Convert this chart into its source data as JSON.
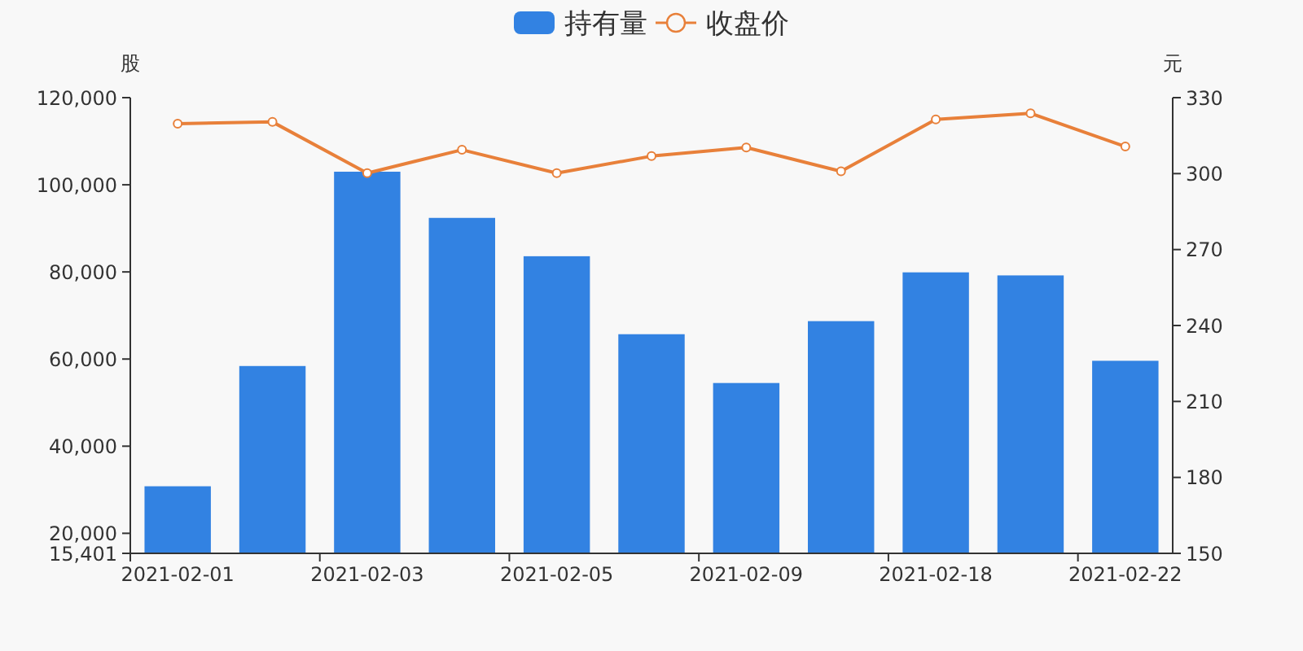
{
  "chart_data": {
    "type": "bar",
    "legend": "top",
    "categories": [
      "2021-02-01",
      null,
      "2021-02-03",
      null,
      "2021-02-05",
      null,
      "2021-02-09",
      null,
      "2021-02-18",
      null,
      "2021-02-22"
    ],
    "series": [
      {
        "name": "持有量",
        "color": "#3282e2",
        "values": [
          30800,
          58400,
          103000,
          92400,
          83600,
          65700,
          54500,
          68700,
          79900,
          79200,
          59600
        ]
      },
      {
        "name": "收盘价",
        "type": "line",
        "axis": "y2",
        "color": "#e8803a",
        "marker": "circle",
        "values": [
          319.7,
          320.4,
          300.2,
          309.4,
          300.2,
          306.9,
          310.3,
          300.9,
          321.4,
          323.8,
          310.7
        ]
      }
    ],
    "ylabel": "股",
    "y2label": "元",
    "ylim": [
      15401,
      120000
    ],
    "yticks": [
      {
        "value": 15401,
        "label": "15,401"
      },
      {
        "value": 20000,
        "label": "20,000"
      },
      {
        "value": 40000,
        "label": "40,000"
      },
      {
        "value": 60000,
        "label": "60,000"
      },
      {
        "value": 80000,
        "label": "80,000"
      },
      {
        "value": 100000,
        "label": "100,000"
      },
      {
        "value": 120000,
        "label": "120,000"
      }
    ],
    "y2lim": [
      150,
      330
    ],
    "y2ticks": [
      150,
      180,
      210,
      240,
      270,
      300,
      330
    ]
  }
}
